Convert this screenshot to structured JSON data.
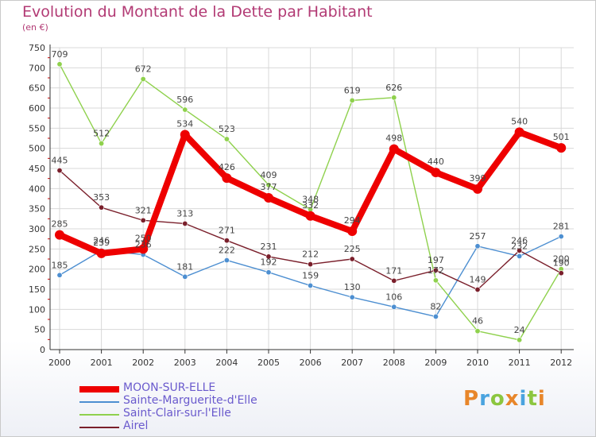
{
  "title": "Evolution du Montant de la Dette par Habitant",
  "subtitle": "(en €)",
  "logo": "Proxiti",
  "chart_data": {
    "type": "line",
    "title": "Evolution du Montant de la Dette par Habitant",
    "xlabel": "",
    "ylabel": "(en €)",
    "ylim": [
      0,
      750
    ],
    "yticks": [
      0,
      50,
      100,
      150,
      200,
      250,
      300,
      350,
      400,
      450,
      500,
      550,
      600,
      650,
      700,
      750
    ],
    "categories": [
      "2000",
      "2001",
      "2002",
      "2003",
      "2004",
      "2005",
      "2006",
      "2007",
      "2008",
      "2009",
      "2010",
      "2011",
      "2012"
    ],
    "grid": true,
    "legend_position": "bottom",
    "series": [
      {
        "name": "MOON-SUR-ELLE",
        "color": "#ee0000",
        "values": [
          285,
          239,
          250,
          534,
          426,
          377,
          332,
          294,
          498,
          440,
          399,
          540,
          501
        ]
      },
      {
        "name": "Sainte-Marguerite-d'Elle",
        "color": "#4d8fd1",
        "values": [
          185,
          246,
          236,
          181,
          222,
          192,
          159,
          130,
          106,
          82,
          257,
          232,
          281
        ]
      },
      {
        "name": "Saint-Clair-sur-l'Elle",
        "color": "#8fd14d",
        "values": [
          709,
          512,
          672,
          596,
          523,
          409,
          348,
          619,
          626,
          172,
          46,
          24,
          200
        ]
      },
      {
        "name": "Airel",
        "color": "#7a1f2b",
        "values": [
          445,
          353,
          321,
          313,
          271,
          231,
          212,
          225,
          171,
          197,
          149,
          246,
          190
        ]
      }
    ],
    "labels": [
      [
        "285",
        "239",
        "250",
        "534",
        "426",
        "377",
        "332",
        "294",
        "498",
        "440",
        "399",
        "540",
        "501"
      ],
      [
        "185",
        "246",
        "236",
        "181",
        "222",
        "192",
        "159",
        "130",
        "106",
        "82",
        "257",
        "232",
        "281"
      ],
      [
        "709",
        "512",
        "672",
        "596",
        "523",
        "409",
        "348",
        "619",
        "626",
        "172",
        "46",
        "24",
        "200"
      ],
      [
        "445",
        "353",
        "321",
        "313",
        "271",
        "231",
        "212",
        "225",
        "171",
        "197",
        "149",
        "246",
        "190"
      ]
    ]
  },
  "colors": {
    "title": "#b23a74",
    "grid": "#d8d8d8",
    "axis": "#333333",
    "legend_text": "#6a5acd",
    "logo": [
      "#e8862a",
      "#4aa3df",
      "#8cc63f",
      "#e8862a",
      "#4aa3df",
      "#8cc63f",
      "#e8862a"
    ]
  }
}
